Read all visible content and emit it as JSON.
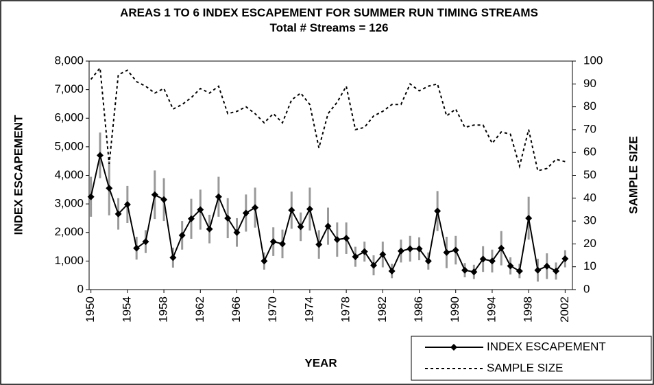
{
  "chart_data": {
    "type": "line",
    "title": "AREAS 1 TO 6 INDEX ESCAPEMENT FOR SUMMER RUN TIMING STREAMS",
    "subtitle": "Total # Streams = 126",
    "xlabel": "YEAR",
    "ylabel": "INDEX ESCAPEMENT",
    "y2label": "SAMPLE SIZE",
    "x": [
      1950,
      1951,
      1952,
      1953,
      1954,
      1955,
      1956,
      1957,
      1958,
      1959,
      1960,
      1961,
      1962,
      1963,
      1964,
      1965,
      1966,
      1967,
      1968,
      1969,
      1970,
      1971,
      1972,
      1973,
      1974,
      1975,
      1976,
      1977,
      1978,
      1979,
      1980,
      1981,
      1982,
      1983,
      1984,
      1985,
      1986,
      1987,
      1988,
      1989,
      1990,
      1991,
      1992,
      1993,
      1994,
      1995,
      1996,
      1997,
      1998,
      1999,
      2000,
      2001,
      2002
    ],
    "xlim": [
      1949.8,
      2002.8
    ],
    "xticks": [
      1950,
      1954,
      1958,
      1962,
      1966,
      1970,
      1974,
      1978,
      1982,
      1986,
      1990,
      1994,
      1998,
      2002
    ],
    "ylim": [
      0,
      8000
    ],
    "yticks": [
      0,
      {
        "value": 1000,
        "label": "1,000"
      },
      {
        "value": 2000,
        "label": "2,000"
      },
      {
        "value": 3000,
        "label": "3,000"
      },
      {
        "value": 4000,
        "label": "4,000"
      },
      {
        "value": 5000,
        "label": "5,000"
      },
      {
        "value": 6000,
        "label": "6,000"
      },
      {
        "value": 7000,
        "label": "7,000"
      },
      {
        "value": 8000,
        "label": "8,000"
      }
    ],
    "y2lim": [
      0,
      100
    ],
    "y2ticks": [
      0,
      10,
      20,
      30,
      40,
      50,
      60,
      70,
      80,
      90,
      100
    ],
    "legend": "bottom-right",
    "series": [
      {
        "name": "INDEX ESCAPEMENT",
        "color": "#000000",
        "line_style": "solid",
        "marker": "diamond",
        "error_color": "#999999",
        "values": [
          3250,
          4700,
          3550,
          2650,
          2980,
          1450,
          1680,
          3320,
          3150,
          1120,
          1900,
          2480,
          2800,
          2120,
          3250,
          2500,
          2000,
          2680,
          2870,
          1000,
          1680,
          1600,
          2780,
          2200,
          2820,
          1580,
          2220,
          1750,
          1800,
          1150,
          1330,
          850,
          1230,
          650,
          1350,
          1430,
          1430,
          1000,
          2750,
          1300,
          1380,
          680,
          620,
          1070,
          1000,
          1450,
          830,
          650,
          2500,
          680,
          820,
          650,
          1080
        ],
        "errors": [
          700,
          800,
          950,
          550,
          650,
          400,
          400,
          850,
          750,
          350,
          500,
          700,
          700,
          500,
          700,
          700,
          500,
          650,
          700,
          300,
          500,
          500,
          650,
          500,
          750,
          500,
          650,
          600,
          550,
          350,
          350,
          350,
          450,
          250,
          400,
          450,
          400,
          300,
          700,
          550,
          500,
          250,
          250,
          450,
          400,
          600,
          300,
          250,
          750,
          400,
          450,
          300,
          300
        ]
      },
      {
        "name": "SAMPLE SIZE",
        "color": "#000000",
        "line_style": "dotted",
        "axis": "y2",
        "values": [
          92,
          97,
          55,
          94,
          96,
          91,
          89,
          86,
          88,
          79,
          81,
          84,
          88,
          86,
          89,
          77,
          78,
          80,
          77,
          73,
          77,
          73,
          83,
          86,
          81,
          62,
          77,
          82,
          89,
          70,
          71,
          76,
          78,
          81,
          81,
          90,
          87,
          89,
          90,
          76,
          79,
          71,
          72,
          72,
          64,
          69,
          68,
          54,
          70,
          52,
          53,
          57,
          56
        ]
      }
    ]
  }
}
